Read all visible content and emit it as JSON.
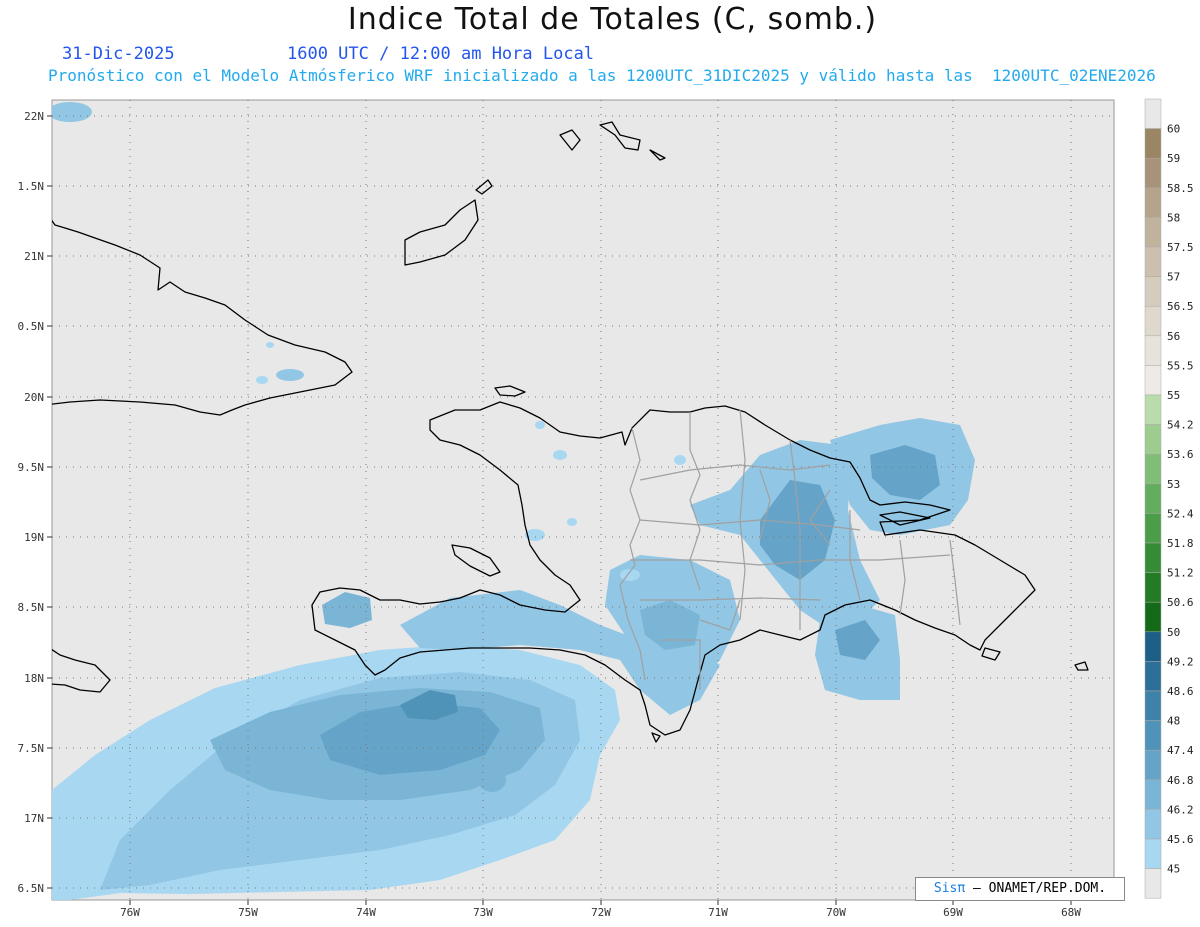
{
  "header": {
    "title": "Indice Total de Totales (C, somb.)",
    "date": "31-Dic-2025",
    "time": "1600 UTC / 12:00 am Hora Local",
    "description": "Pronóstico con el Modelo Atmósferico WRF inicializado a las 1200UTC_31DIC2025 y válido hasta las  1200UTC_02ENE2026"
  },
  "map": {
    "lat_labels": [
      "22N",
      "1.5N",
      "21N",
      "0.5N",
      "20N",
      "9.5N",
      "19N",
      "8.5N",
      "18N",
      "7.5N",
      "17N",
      "6.5N"
    ],
    "lon_labels": [
      "76W",
      "75W",
      "74W",
      "73W",
      "72W",
      "71W",
      "70W",
      "69W",
      "68W"
    ],
    "background_color": "#e8e8e8",
    "coastline_color": "#000000",
    "province_color": "#a0a0a0"
  },
  "colorbar": {
    "labels": [
      "60",
      "59",
      "58.5",
      "58",
      "57.5",
      "57",
      "56.5",
      "56",
      "55.5",
      "55",
      "54.2",
      "53.6",
      "53",
      "52.4",
      "51.8",
      "51.2",
      "50.6",
      "50",
      "49.2",
      "48.6",
      "48",
      "47.4",
      "46.8",
      "46.2",
      "45.6",
      "45"
    ],
    "colors": [
      "#e8e8e8",
      "#9a8565",
      "#a8937a",
      "#b5a38c",
      "#c1b29e",
      "#ccbfae",
      "#d6ccbe",
      "#dfd8cd",
      "#e7e2db",
      "#eeebe6",
      "#b8dcaa",
      "#9ccd8f",
      "#80bd76",
      "#65ad5e",
      "#4c9d48",
      "#368c36",
      "#237b26",
      "#156a19",
      "#1d5f86",
      "#2c6f98",
      "#3e81a9",
      "#5093b9",
      "#65a4c8",
      "#7ab5d6",
      "#91c6e4",
      "#a8d7f1",
      "#e8e8e8"
    ]
  },
  "footer": {
    "credit_logo": "Sisπ",
    "credit_text": "– ONAMET/REP.DOM."
  }
}
